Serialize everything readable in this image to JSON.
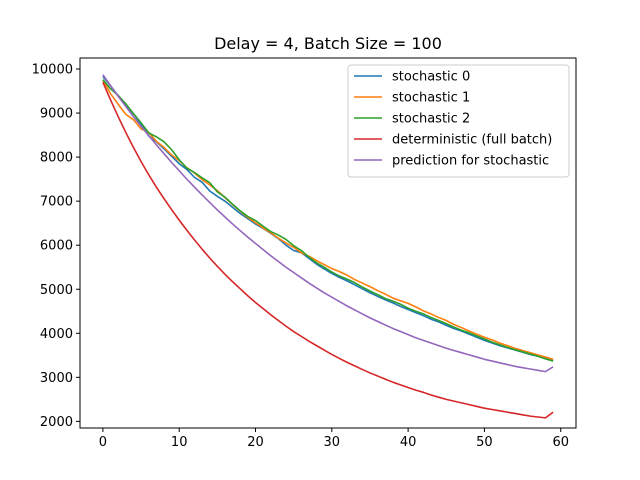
{
  "chart_data": {
    "type": "line",
    "title": "Delay = 4, Batch Size = 100",
    "xlabel": "",
    "ylabel": "",
    "xlim": [
      -3,
      62
    ],
    "ylim": [
      1850,
      10250
    ],
    "xticks": [
      0,
      10,
      20,
      30,
      40,
      50,
      60
    ],
    "yticks": [
      2000,
      3000,
      4000,
      5000,
      6000,
      7000,
      8000,
      9000,
      10000
    ],
    "grid": false,
    "legend_position": "top-right",
    "x": [
      0,
      1,
      2,
      3,
      4,
      5,
      6,
      7,
      8,
      9,
      10,
      11,
      12,
      13,
      14,
      15,
      16,
      17,
      18,
      19,
      20,
      21,
      22,
      23,
      24,
      25,
      26,
      27,
      28,
      29,
      30,
      31,
      32,
      33,
      34,
      35,
      36,
      37,
      38,
      39,
      40,
      41,
      42,
      43,
      44,
      45,
      46,
      47,
      48,
      49,
      50,
      51,
      52,
      53,
      54,
      55,
      56,
      57,
      58,
      59
    ],
    "series": [
      {
        "name": "stochastic 0",
        "color": "#1f77b4",
        "values": [
          9830,
          9620,
          9390,
          9180,
          8920,
          8740,
          8480,
          8350,
          8190,
          8020,
          7850,
          7720,
          7540,
          7430,
          7230,
          7110,
          7000,
          6860,
          6720,
          6600,
          6480,
          6380,
          6270,
          6150,
          6000,
          5880,
          5830,
          5700,
          5570,
          5460,
          5360,
          5270,
          5190,
          5100,
          5010,
          4920,
          4840,
          4760,
          4690,
          4610,
          4540,
          4470,
          4400,
          4320,
          4260,
          4180,
          4110,
          4050,
          3980,
          3910,
          3840,
          3780,
          3720,
          3670,
          3620,
          3570,
          3520,
          3480,
          3430,
          3380
        ]
      },
      {
        "name": "stochastic 1",
        "color": "#ff7f0e",
        "values": [
          9750,
          9440,
          9200,
          8970,
          8850,
          8640,
          8560,
          8360,
          8220,
          8050,
          7920,
          7760,
          7640,
          7490,
          7370,
          7240,
          7080,
          6920,
          6770,
          6630,
          6510,
          6390,
          6280,
          6160,
          6050,
          5950,
          5830,
          5750,
          5650,
          5560,
          5470,
          5400,
          5320,
          5220,
          5140,
          5060,
          4970,
          4890,
          4800,
          4740,
          4680,
          4600,
          4510,
          4440,
          4360,
          4290,
          4200,
          4130,
          4050,
          3980,
          3910,
          3850,
          3780,
          3720,
          3660,
          3610,
          3560,
          3510,
          3460,
          3410
        ]
      },
      {
        "name": "stochastic 2",
        "color": "#2ca02c",
        "values": [
          9760,
          9550,
          9400,
          9210,
          8990,
          8780,
          8550,
          8460,
          8350,
          8170,
          7940,
          7750,
          7650,
          7530,
          7420,
          7210,
          7090,
          6930,
          6780,
          6650,
          6560,
          6430,
          6310,
          6230,
          6130,
          5990,
          5880,
          5730,
          5600,
          5500,
          5390,
          5300,
          5230,
          5150,
          5050,
          4960,
          4880,
          4790,
          4730,
          4660,
          4570,
          4500,
          4440,
          4360,
          4290,
          4220,
          4140,
          4070,
          4010,
          3940,
          3870,
          3800,
          3740,
          3680,
          3630,
          3580,
          3530,
          3480,
          3420,
          3370
        ]
      },
      {
        "name": "deterministic (full batch)",
        "color": "#d62728",
        "values": [
          9700,
          9300,
          8920,
          8560,
          8220,
          7900,
          7600,
          7320,
          7060,
          6810,
          6570,
          6340,
          6120,
          5910,
          5710,
          5520,
          5340,
          5170,
          5010,
          4850,
          4700,
          4560,
          4420,
          4290,
          4160,
          4040,
          3930,
          3820,
          3720,
          3620,
          3520,
          3430,
          3340,
          3260,
          3180,
          3100,
          3030,
          2960,
          2890,
          2830,
          2770,
          2710,
          2660,
          2600,
          2550,
          2500,
          2460,
          2420,
          2380,
          2340,
          2300,
          2270,
          2240,
          2210,
          2180,
          2150,
          2120,
          2100,
          2080,
          2210
        ]
      },
      {
        "name": "prediction for stochastic",
        "color": "#9467bd",
        "values": [
          9870,
          9620,
          9380,
          9150,
          8920,
          8700,
          8490,
          8280,
          8080,
          7880,
          7690,
          7500,
          7320,
          7140,
          6970,
          6800,
          6640,
          6480,
          6330,
          6180,
          6040,
          5900,
          5760,
          5630,
          5500,
          5380,
          5260,
          5140,
          5030,
          4920,
          4820,
          4720,
          4620,
          4530,
          4440,
          4350,
          4270,
          4190,
          4110,
          4040,
          3970,
          3900,
          3840,
          3780,
          3720,
          3660,
          3610,
          3560,
          3510,
          3460,
          3410,
          3370,
          3330,
          3290,
          3250,
          3220,
          3190,
          3160,
          3130,
          3240
        ]
      }
    ]
  }
}
